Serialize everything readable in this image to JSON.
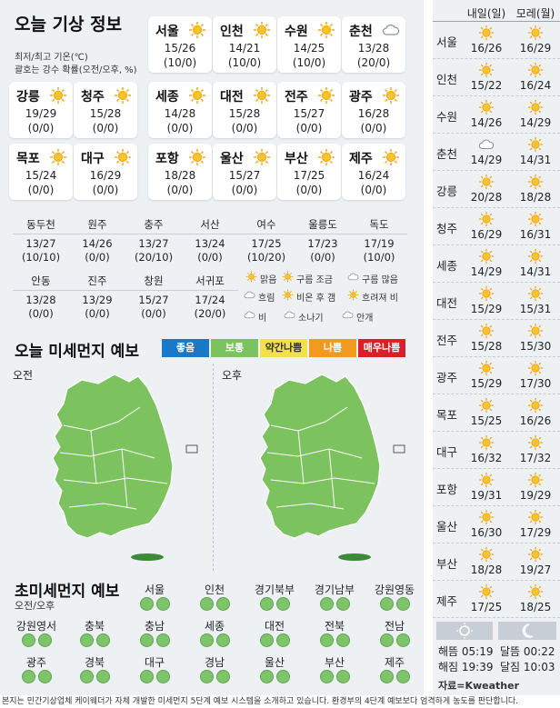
{
  "title": "오늘 기상 정보",
  "notes": [
    "최저/최고 기온(℃)",
    "괄호는 강수 확률(오전/오후, %)"
  ],
  "main_cities": [
    {
      "name": "서울",
      "temp": "15/26",
      "prob": "(10/0)",
      "icon": "sun"
    },
    {
      "name": "인천",
      "temp": "14/21",
      "prob": "(10/0)",
      "icon": "sun"
    },
    {
      "name": "수원",
      "temp": "14/25",
      "prob": "(10/0)",
      "icon": "sun"
    },
    {
      "name": "춘천",
      "temp": "13/28",
      "prob": "(20/0)",
      "icon": "cloud"
    },
    {
      "name": "강릉",
      "temp": "19/29",
      "prob": "(0/0)",
      "icon": "sun"
    },
    {
      "name": "청주",
      "temp": "15/28",
      "prob": "(0/0)",
      "icon": "sun"
    },
    {
      "name": "세종",
      "temp": "14/28",
      "prob": "(0/0)",
      "icon": "sun"
    },
    {
      "name": "대전",
      "temp": "15/28",
      "prob": "(0/0)",
      "icon": "sun"
    },
    {
      "name": "전주",
      "temp": "15/27",
      "prob": "(0/0)",
      "icon": "sun"
    },
    {
      "name": "광주",
      "temp": "16/28",
      "prob": "(0/0)",
      "icon": "sun"
    },
    {
      "name": "목포",
      "temp": "15/24",
      "prob": "(0/0)",
      "icon": "sun"
    },
    {
      "name": "대구",
      "temp": "16/29",
      "prob": "(0/0)",
      "icon": "sun"
    },
    {
      "name": "포항",
      "temp": "18/28",
      "prob": "(0/0)",
      "icon": "sun"
    },
    {
      "name": "울산",
      "temp": "15/27",
      "prob": "(0/0)",
      "icon": "sun"
    },
    {
      "name": "부산",
      "temp": "17/25",
      "prob": "(0/0)",
      "icon": "sun"
    },
    {
      "name": "제주",
      "temp": "16/24",
      "prob": "(0/0)",
      "icon": "sun"
    }
  ],
  "small_cities": [
    {
      "name": "동두천",
      "temp": "13/27",
      "prob": "(10/10)"
    },
    {
      "name": "원주",
      "temp": "14/26",
      "prob": "(0/0)"
    },
    {
      "name": "충주",
      "temp": "13/27",
      "prob": "(20/10)"
    },
    {
      "name": "서산",
      "temp": "13/24",
      "prob": "(0/0)"
    },
    {
      "name": "여수",
      "temp": "17/25",
      "prob": "(10/20)"
    },
    {
      "name": "울릉도",
      "temp": "17/23",
      "prob": "(0/0)"
    },
    {
      "name": "독도",
      "temp": "17/19",
      "prob": "(10/0)"
    },
    {
      "name": "안동",
      "temp": "13/28",
      "prob": "(0/0)"
    },
    {
      "name": "진주",
      "temp": "13/29",
      "prob": "(0/0)"
    },
    {
      "name": "창원",
      "temp": "15/27",
      "prob": "(0/0)"
    },
    {
      "name": "서귀포",
      "temp": "17/24",
      "prob": "(20/0)"
    }
  ],
  "weather_legend": [
    "맑음",
    "구름 조금",
    "구름 많음",
    "흐림",
    "비온 후 갬",
    "흐려져 비",
    "비",
    "소나기",
    "안개"
  ],
  "dust_title": "오늘 미세먼지 예보",
  "dust_levels": [
    {
      "label": "좋음",
      "color": "#1a78c9"
    },
    {
      "label": "보통",
      "color": "#7cc35f"
    },
    {
      "label": "약간나쁨",
      "color": "#f2e14b"
    },
    {
      "label": "나쁨",
      "color": "#f29a1f"
    },
    {
      "label": "매우나쁨",
      "color": "#d9202a"
    }
  ],
  "map_labels": {
    "am": "오전",
    "pm": "오후"
  },
  "pm25_title": "초미세먼지 예보",
  "pm25_sub": "오전/오후",
  "pm25_regions": [
    "서울",
    "인천",
    "경기북부",
    "경기남부",
    "강원영동",
    "강원영서",
    "충북",
    "충남",
    "세종",
    "대전",
    "전북",
    "전남",
    "광주",
    "경북",
    "대구",
    "경남",
    "울산",
    "부산",
    "제주"
  ],
  "forecast_headers": [
    "내일(일)",
    "모레(월)"
  ],
  "forecast": [
    {
      "city": "서울",
      "d1": "16/26",
      "d2": "16/29",
      "i1": "sun",
      "i2": "sun"
    },
    {
      "city": "인천",
      "d1": "15/22",
      "d2": "16/24",
      "i1": "sun",
      "i2": "sun"
    },
    {
      "city": "수원",
      "d1": "14/26",
      "d2": "14/29",
      "i1": "sun",
      "i2": "sun"
    },
    {
      "city": "춘천",
      "d1": "14/29",
      "d2": "14/31",
      "i1": "cloud",
      "i2": "sun"
    },
    {
      "city": "강릉",
      "d1": "20/28",
      "d2": "18/28",
      "i1": "sun",
      "i2": "sun"
    },
    {
      "city": "청주",
      "d1": "16/29",
      "d2": "16/31",
      "i1": "sun",
      "i2": "sun"
    },
    {
      "city": "세종",
      "d1": "14/29",
      "d2": "14/31",
      "i1": "sun",
      "i2": "sun"
    },
    {
      "city": "대전",
      "d1": "15/29",
      "d2": "15/31",
      "i1": "sun",
      "i2": "sun"
    },
    {
      "city": "전주",
      "d1": "15/28",
      "d2": "15/30",
      "i1": "sun",
      "i2": "sun"
    },
    {
      "city": "광주",
      "d1": "15/29",
      "d2": "17/30",
      "i1": "sun",
      "i2": "sun"
    },
    {
      "city": "목포",
      "d1": "15/25",
      "d2": "16/26",
      "i1": "sun",
      "i2": "sun"
    },
    {
      "city": "대구",
      "d1": "16/32",
      "d2": "17/32",
      "i1": "sun",
      "i2": "sun"
    },
    {
      "city": "포항",
      "d1": "19/31",
      "d2": "19/29",
      "i1": "sun",
      "i2": "sun"
    },
    {
      "city": "울산",
      "d1": "16/30",
      "d2": "17/29",
      "i1": "sun",
      "i2": "sun"
    },
    {
      "city": "부산",
      "d1": "18/28",
      "d2": "19/27",
      "i1": "sun",
      "i2": "sun"
    },
    {
      "city": "제주",
      "d1": "17/25",
      "d2": "18/25",
      "i1": "sun",
      "i2": "sun"
    }
  ],
  "sun_moon": {
    "sunrise": "해뜸 05:19",
    "sunset": "해짐 19:39",
    "moonrise": "달뜸 00:22",
    "moonset": "달짐 10:03"
  },
  "source": "자료=Kweather",
  "footer": "본지는 민간기상업체 케이웨더가 자체 개발한 미세먼지 5단계 예보 시스템을 소개하고 있습니다. 환경부의 4단계 예보보다 엄격하게 농도를 판단합니다."
}
